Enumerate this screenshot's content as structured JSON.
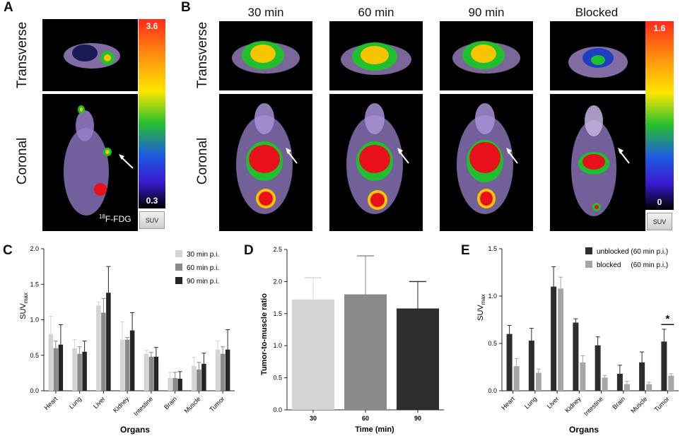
{
  "panel_labels": {
    "a": "A",
    "b": "B",
    "c": "C",
    "d": "D",
    "e": "E"
  },
  "imaging": {
    "view_transverse": "Transverse",
    "view_coronal": "Coronal",
    "fdg_label": "18F-FDG",
    "fdg_superscript": "18",
    "fdg_tail": "F-FDG",
    "fdg_scale_max": "3.6",
    "fdg_scale_min": "0.3",
    "suv_button": "SUV",
    "time_points": [
      "30 min",
      "60 min",
      "90 min",
      "Blocked"
    ],
    "scale_max": "1.6",
    "scale_min": "0",
    "colors": {
      "hot": "#e8101a",
      "warm": "#f7c400",
      "mid": "#1fbf2e",
      "cool": "#2340d8",
      "body": "#b89ad6"
    }
  },
  "chart_data": [
    {
      "id": "C",
      "type": "bar",
      "title": "",
      "xlabel": "Organs",
      "ylabel": "SUVmax",
      "ylabel_main": "SUV",
      "ylabel_sub": "max",
      "ylim": [
        0,
        2.0
      ],
      "yticks": [
        "0.0",
        "0.5",
        "1.0",
        "1.5",
        "2.0"
      ],
      "categories": [
        "Heart",
        "Lung",
        "Liver",
        "Kidney",
        "Intestine",
        "Brain",
        "Muscle",
        "Tumor"
      ],
      "series": [
        {
          "name": "30 min p.i.",
          "color": "#d4d4d4",
          "values": [
            0.8,
            0.6,
            1.2,
            0.72,
            0.52,
            0.18,
            0.35,
            0.58
          ],
          "errors": [
            0.25,
            0.12,
            0.05,
            0.25,
            0.05,
            0.08,
            0.12,
            0.12
          ]
        },
        {
          "name": "60 min p.i.",
          "color": "#8a8a8a",
          "values": [
            0.6,
            0.52,
            1.1,
            0.72,
            0.48,
            0.18,
            0.3,
            0.52
          ],
          "errors": [
            0.1,
            0.1,
            0.2,
            0.03,
            0.06,
            0.08,
            0.1,
            0.1
          ]
        },
        {
          "name": "90 min p.i.",
          "color": "#252525",
          "values": [
            0.65,
            0.55,
            1.38,
            0.85,
            0.48,
            0.17,
            0.38,
            0.58
          ],
          "errors": [
            0.28,
            0.15,
            0.37,
            0.25,
            0.13,
            0.1,
            0.15,
            0.28
          ]
        }
      ]
    },
    {
      "id": "D",
      "type": "bar",
      "title": "",
      "xlabel": "Time (min)",
      "ylabel": "Tumor-to-muscle ratio",
      "ylim": [
        0,
        2.5
      ],
      "yticks": [
        "0.0",
        "0.5",
        "1.0",
        "1.5",
        "2.0",
        "2.5"
      ],
      "categories": [
        "30",
        "60",
        "90"
      ],
      "series": [
        {
          "name": "ratio",
          "colors": [
            "#d4d4d4",
            "#8a8a8a",
            "#2d2d2d"
          ],
          "values": [
            1.72,
            1.8,
            1.58
          ],
          "errors": [
            0.34,
            0.6,
            0.42
          ]
        }
      ]
    },
    {
      "id": "E",
      "type": "bar",
      "title": "",
      "xlabel": "Organs",
      "ylabel": "SUVmax",
      "ylabel_main": "SUV",
      "ylabel_sub": "max",
      "ylim": [
        0,
        1.5
      ],
      "yticks": [
        "0.0",
        "0.5",
        "1.0",
        "1.5"
      ],
      "categories": [
        "Heart",
        "Lung",
        "Liver",
        "Kidney",
        "Intestine",
        "Brain",
        "Muscle",
        "Tumor"
      ],
      "series": [
        {
          "name": "unblocked (60 min p.i.)",
          "color": "#2d2d2d",
          "values": [
            0.6,
            0.53,
            1.1,
            0.72,
            0.48,
            0.18,
            0.3,
            0.52
          ],
          "errors": [
            0.09,
            0.13,
            0.21,
            0.04,
            0.09,
            0.09,
            0.11,
            0.13
          ]
        },
        {
          "name": "blocked     (60 min p.i.)",
          "color": "#a6a6a6",
          "values": [
            0.26,
            0.19,
            1.08,
            0.3,
            0.14,
            0.07,
            0.07,
            0.16
          ],
          "errors": [
            0.08,
            0.04,
            0.12,
            0.07,
            0.02,
            0.03,
            0.02,
            0.02
          ]
        }
      ],
      "annotation": "*"
    }
  ]
}
